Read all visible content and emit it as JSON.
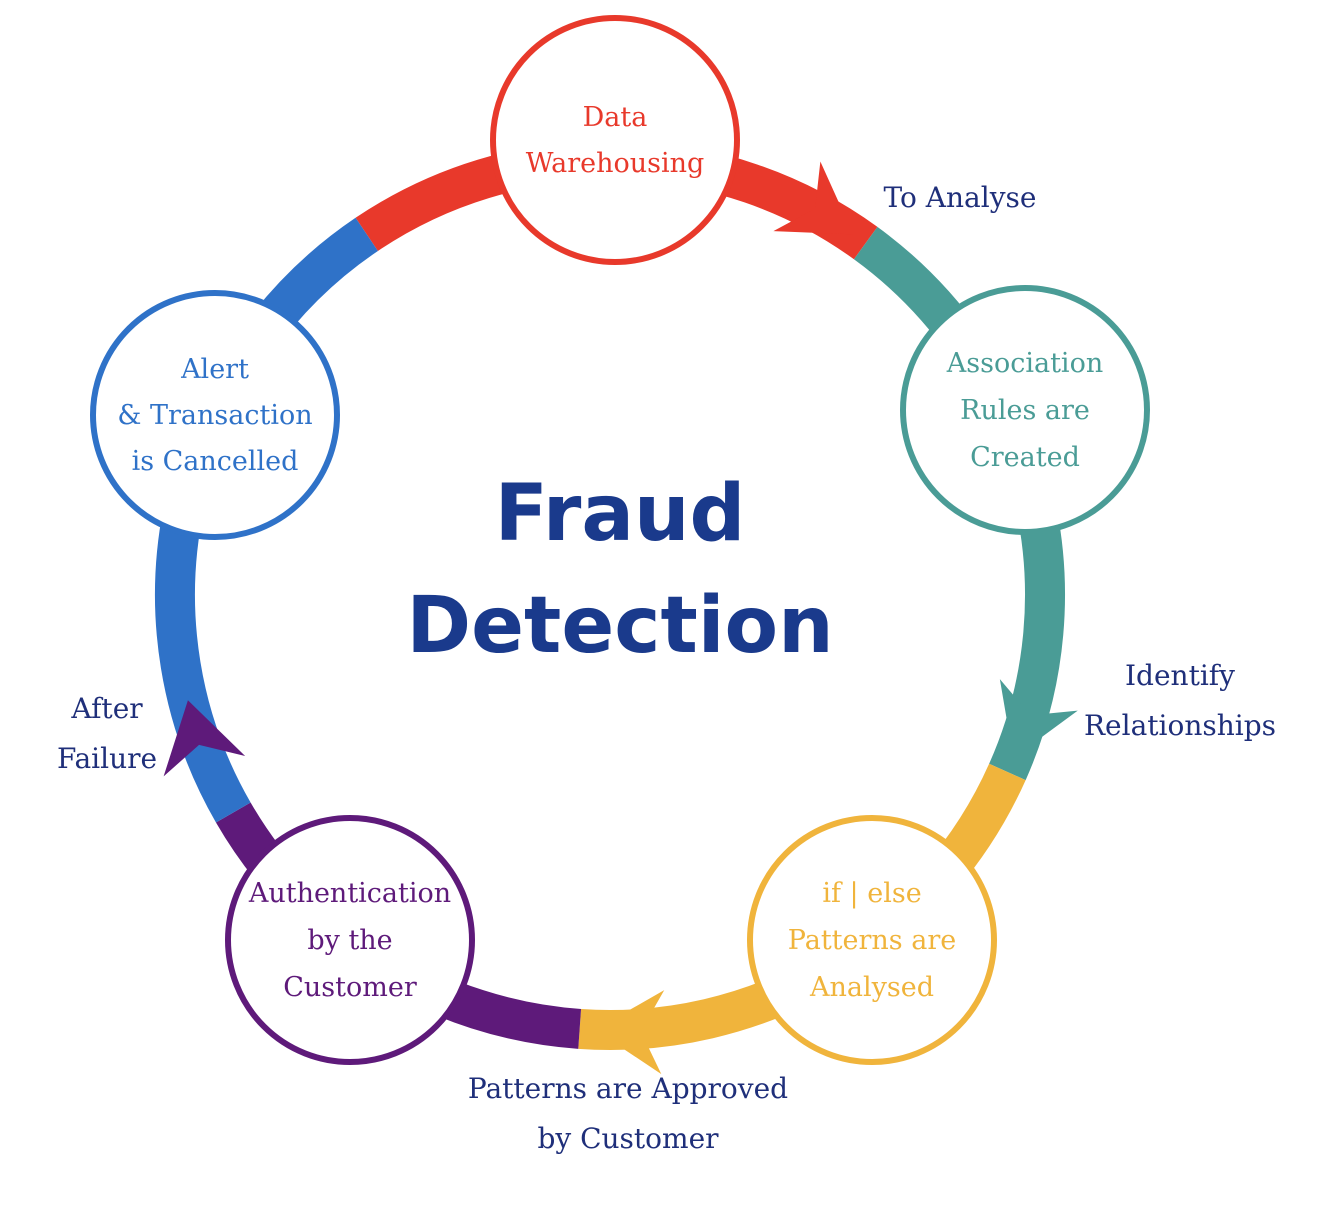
{
  "title": {
    "lines": [
      "Fraud",
      "Detection"
    ],
    "color": "#1a3a8c"
  },
  "label_color": "#1f2f7a",
  "nodes": [
    {
      "id": "data-warehousing",
      "lines": [
        "Data",
        "Warehousing"
      ],
      "color": "#e8392b"
    },
    {
      "id": "association-rules",
      "lines": [
        "Association",
        "Rules are",
        "Created"
      ],
      "color": "#4a9c96"
    },
    {
      "id": "patterns-analysed",
      "lines": [
        "if | else",
        "Patterns are",
        "Analysed"
      ],
      "color": "#f0b43c"
    },
    {
      "id": "authentication",
      "lines": [
        "Authentication",
        "by the",
        "Customer"
      ],
      "color": "#5e1a7a"
    },
    {
      "id": "alert-cancelled",
      "lines": [
        "Alert",
        "& Transaction",
        "is Cancelled"
      ],
      "color": "#2f72c8"
    }
  ],
  "edge_labels": [
    {
      "id": "to-analyse",
      "lines": [
        "To Analyse"
      ]
    },
    {
      "id": "identify-relationships",
      "lines": [
        "Identify",
        "Relationships"
      ]
    },
    {
      "id": "patterns-approved",
      "lines": [
        "Patterns are Approved",
        "by Customer"
      ]
    },
    {
      "id": "after-failure",
      "lines": [
        "After",
        "Failure"
      ]
    }
  ]
}
